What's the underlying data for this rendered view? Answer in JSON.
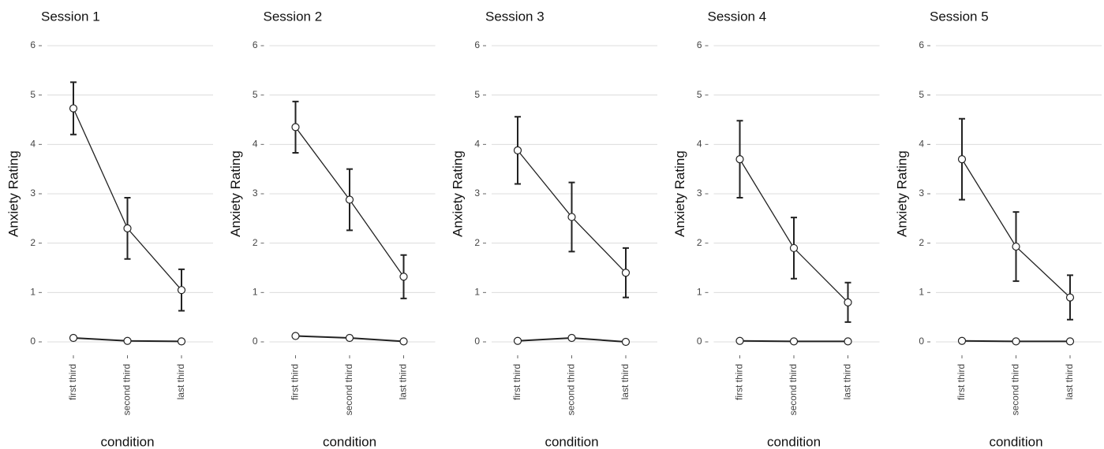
{
  "chart_data": [
    {
      "type": "line",
      "title": "Session 1",
      "xlabel": "condition",
      "ylabel": "Anxiety Rating",
      "categories": [
        "first third",
        "second third",
        "last third"
      ],
      "series": [
        {
          "color": "#222222",
          "values": [
            4.73,
            2.3,
            1.05
          ],
          "errors": [
            0.53,
            0.62,
            0.42
          ]
        },
        {
          "color": "#222222",
          "values": [
            0.08,
            0.02,
            0.01
          ]
        }
      ],
      "ylim": [
        -0.3,
        6.3
      ],
      "yticks": [
        0,
        1,
        2,
        3,
        4,
        5,
        6
      ],
      "grid": true
    },
    {
      "type": "line",
      "title": "Session 2",
      "xlabel": "condition",
      "ylabel": "Anxiety Rating",
      "categories": [
        "first third",
        "second third",
        "last third"
      ],
      "series": [
        {
          "color": "#222222",
          "values": [
            4.35,
            2.88,
            1.32
          ],
          "errors": [
            0.52,
            0.62,
            0.44
          ]
        },
        {
          "color": "#222222",
          "values": [
            0.12,
            0.08,
            0.01
          ]
        }
      ],
      "ylim": [
        -0.3,
        6.3
      ],
      "yticks": [
        0,
        1,
        2,
        3,
        4,
        5,
        6
      ],
      "grid": true
    },
    {
      "type": "line",
      "title": "Session 3",
      "xlabel": "condition",
      "ylabel": "Anxiety Rating",
      "categories": [
        "first third",
        "second third",
        "last third"
      ],
      "series": [
        {
          "color": "#222222",
          "values": [
            3.88,
            2.53,
            1.4
          ],
          "errors": [
            0.68,
            0.7,
            0.5
          ]
        },
        {
          "color": "#222222",
          "values": [
            0.02,
            0.08,
            0.0
          ]
        }
      ],
      "ylim": [
        -0.3,
        6.3
      ],
      "yticks": [
        0,
        1,
        2,
        3,
        4,
        5,
        6
      ],
      "grid": true
    },
    {
      "type": "line",
      "title": "Session 4",
      "xlabel": "condition",
      "ylabel": "Anxiety Rating",
      "categories": [
        "first third",
        "second third",
        "last third"
      ],
      "series": [
        {
          "color": "#222222",
          "values": [
            3.7,
            1.9,
            0.8
          ],
          "errors": [
            0.78,
            0.62,
            0.4
          ]
        },
        {
          "color": "#222222",
          "values": [
            0.02,
            0.01,
            0.01
          ]
        }
      ],
      "ylim": [
        -0.3,
        6.3
      ],
      "yticks": [
        0,
        1,
        2,
        3,
        4,
        5,
        6
      ],
      "grid": true
    },
    {
      "type": "line",
      "title": "Session 5",
      "xlabel": "condition",
      "ylabel": "Anxiety Rating",
      "categories": [
        "first third",
        "second third",
        "last third"
      ],
      "series": [
        {
          "color": "#222222",
          "values": [
            3.7,
            1.93,
            0.9
          ],
          "errors": [
            0.82,
            0.7,
            0.45
          ]
        },
        {
          "color": "#222222",
          "values": [
            0.02,
            0.01,
            0.01
          ]
        }
      ],
      "ylim": [
        -0.3,
        6.3
      ],
      "yticks": [
        0,
        1,
        2,
        3,
        4,
        5,
        6
      ],
      "grid": true
    }
  ]
}
